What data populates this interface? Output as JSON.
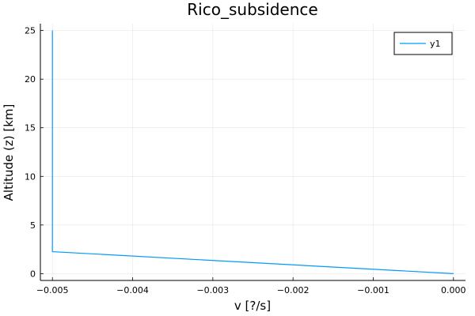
{
  "chart_data": {
    "type": "line",
    "title": "Rico_subsidence",
    "xlabel": "v [?/s]",
    "ylabel": "Altitude (z) [km]",
    "xlim": [
      -0.00515,
      0.00015
    ],
    "ylim": [
      -0.7,
      25.7
    ],
    "x_ticks": [
      -0.005,
      -0.004,
      -0.003,
      -0.002,
      -0.001,
      0.0
    ],
    "x_tick_labels": [
      "−0.005",
      "−0.004",
      "−0.003",
      "−0.002",
      "−0.001",
      "0.000"
    ],
    "y_ticks": [
      0,
      5,
      10,
      15,
      20,
      25
    ],
    "y_tick_labels": [
      "0",
      "5",
      "10",
      "15",
      "20",
      "25"
    ],
    "grid": true,
    "legend": "top-right",
    "series": [
      {
        "name": "y1",
        "color": "#009af9",
        "x": [
          0.0,
          -0.005,
          -0.005
        ],
        "y": [
          0.0,
          2.26,
          25.0
        ]
      }
    ]
  }
}
